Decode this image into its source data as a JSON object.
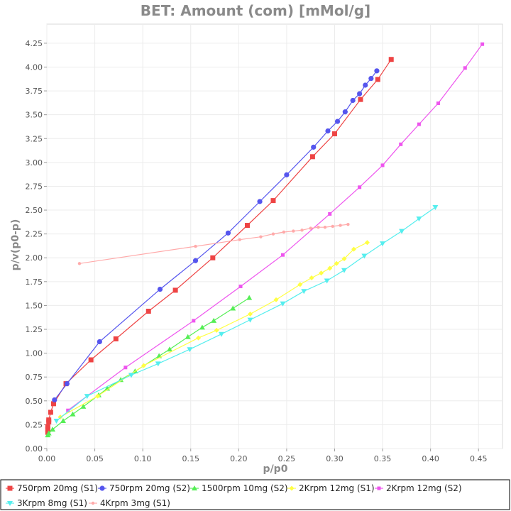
{
  "chart_data": {
    "type": "scatter",
    "title": "BET: Amount (com) [mMol/g]",
    "xlabel": "p/p0",
    "ylabel": "p/v(p0-p)",
    "xlim": [
      0,
      0.475
    ],
    "ylim": [
      0,
      4.45
    ],
    "x_ticks": [
      "0.00",
      "0.05",
      "0.10",
      "0.15",
      "0.20",
      "0.25",
      "0.30",
      "0.35",
      "0.40",
      "0.45"
    ],
    "y_ticks": [
      "0.00",
      "0.25",
      "0.50",
      "0.75",
      "1.00",
      "1.25",
      "1.50",
      "1.75",
      "2.00",
      "2.25",
      "2.50",
      "2.75",
      "3.00",
      "3.25",
      "3.50",
      "3.75",
      "4.00",
      "4.25"
    ],
    "grid": true,
    "legend_position": "bottom",
    "series": [
      {
        "name": "750rpm 20mg (S1)",
        "color": "#ee4444",
        "marker": "square",
        "points": [
          [
            0.001,
            0.17
          ],
          [
            0.001,
            0.2
          ],
          [
            0.001,
            0.23
          ],
          [
            0.002,
            0.28
          ],
          [
            0.002,
            0.3
          ],
          [
            0.004,
            0.38
          ],
          [
            0.007,
            0.47
          ],
          [
            0.02,
            0.68
          ],
          [
            0.046,
            0.93
          ],
          [
            0.072,
            1.15
          ],
          [
            0.106,
            1.44
          ],
          [
            0.134,
            1.66
          ],
          [
            0.173,
            2.0
          ],
          [
            0.209,
            2.34
          ],
          [
            0.236,
            2.6
          ],
          [
            0.277,
            3.06
          ],
          [
            0.3,
            3.3
          ],
          [
            0.327,
            3.66
          ],
          [
            0.345,
            3.87
          ],
          [
            0.359,
            4.08
          ]
        ]
      },
      {
        "name": "750rpm 20mg (S2)",
        "color": "#5555ee",
        "marker": "circle",
        "points": [
          [
            0.008,
            0.51
          ],
          [
            0.021,
            0.68
          ],
          [
            0.055,
            1.12
          ],
          [
            0.118,
            1.67
          ],
          [
            0.155,
            1.97
          ],
          [
            0.189,
            2.26
          ],
          [
            0.222,
            2.59
          ],
          [
            0.25,
            2.87
          ],
          [
            0.278,
            3.16
          ],
          [
            0.293,
            3.33
          ],
          [
            0.303,
            3.43
          ],
          [
            0.311,
            3.53
          ],
          [
            0.319,
            3.65
          ],
          [
            0.326,
            3.72
          ],
          [
            0.332,
            3.81
          ],
          [
            0.338,
            3.88
          ],
          [
            0.344,
            3.96
          ]
        ]
      },
      {
        "name": "1500rpm 10mg (S2)",
        "color": "#55ee55",
        "marker": "triangle-up",
        "points": [
          [
            0.001,
            0.14
          ],
          [
            0.002,
            0.16
          ],
          [
            0.006,
            0.2
          ],
          [
            0.017,
            0.29
          ],
          [
            0.027,
            0.36
          ],
          [
            0.038,
            0.44
          ],
          [
            0.054,
            0.56
          ],
          [
            0.063,
            0.63
          ],
          [
            0.077,
            0.72
          ],
          [
            0.092,
            0.81
          ],
          [
            0.117,
            0.97
          ],
          [
            0.128,
            1.04
          ],
          [
            0.147,
            1.17
          ],
          [
            0.162,
            1.27
          ],
          [
            0.174,
            1.34
          ],
          [
            0.194,
            1.47
          ],
          [
            0.211,
            1.58
          ]
        ]
      },
      {
        "name": "2Krpm 12mg (S1)",
        "color": "#ffff44",
        "marker": "diamond",
        "points": [
          [
            0.014,
            0.33
          ],
          [
            0.053,
            0.55
          ],
          [
            0.101,
            0.87
          ],
          [
            0.158,
            1.16
          ],
          [
            0.177,
            1.24
          ],
          [
            0.212,
            1.41
          ],
          [
            0.239,
            1.56
          ],
          [
            0.264,
            1.72
          ],
          [
            0.276,
            1.79
          ],
          [
            0.286,
            1.84
          ],
          [
            0.295,
            1.89
          ],
          [
            0.302,
            1.94
          ],
          [
            0.31,
            1.99
          ],
          [
            0.32,
            2.09
          ],
          [
            0.334,
            2.16
          ]
        ]
      },
      {
        "name": "2Krpm 12mg (S2)",
        "color": "#ee55ee",
        "marker": "square-small",
        "points": [
          [
            0.022,
            0.4
          ],
          [
            0.082,
            0.85
          ],
          [
            0.153,
            1.34
          ],
          [
            0.202,
            1.7
          ],
          [
            0.246,
            2.03
          ],
          [
            0.295,
            2.46
          ],
          [
            0.326,
            2.74
          ],
          [
            0.35,
            2.97
          ],
          [
            0.369,
            3.19
          ],
          [
            0.388,
            3.4
          ],
          [
            0.408,
            3.62
          ],
          [
            0.436,
            3.99
          ],
          [
            0.454,
            4.24
          ]
        ]
      },
      {
        "name": "3Krpm 8mg (S1)",
        "color": "#55eeee",
        "marker": "triangle-down",
        "points": [
          [
            0.01,
            0.29
          ],
          [
            0.042,
            0.55
          ],
          [
            0.088,
            0.77
          ],
          [
            0.116,
            0.89
          ],
          [
            0.149,
            1.04
          ],
          [
            0.182,
            1.2
          ],
          [
            0.212,
            1.35
          ],
          [
            0.246,
            1.52
          ],
          [
            0.268,
            1.65
          ],
          [
            0.292,
            1.76
          ],
          [
            0.31,
            1.87
          ],
          [
            0.331,
            2.02
          ],
          [
            0.35,
            2.15
          ],
          [
            0.37,
            2.28
          ],
          [
            0.388,
            2.41
          ],
          [
            0.405,
            2.53
          ]
        ]
      },
      {
        "name": "4Krpm 3mg (S1)",
        "color": "#ffaaaa",
        "marker": "circle-small",
        "points": [
          [
            0.034,
            1.94
          ],
          [
            0.155,
            2.12
          ],
          [
            0.201,
            2.19
          ],
          [
            0.223,
            2.22
          ],
          [
            0.236,
            2.25
          ],
          [
            0.247,
            2.27
          ],
          [
            0.257,
            2.28
          ],
          [
            0.266,
            2.29
          ],
          [
            0.275,
            2.31
          ],
          [
            0.283,
            2.32
          ],
          [
            0.29,
            2.32
          ],
          [
            0.298,
            2.33
          ],
          [
            0.306,
            2.34
          ],
          [
            0.314,
            2.35
          ]
        ]
      }
    ]
  }
}
